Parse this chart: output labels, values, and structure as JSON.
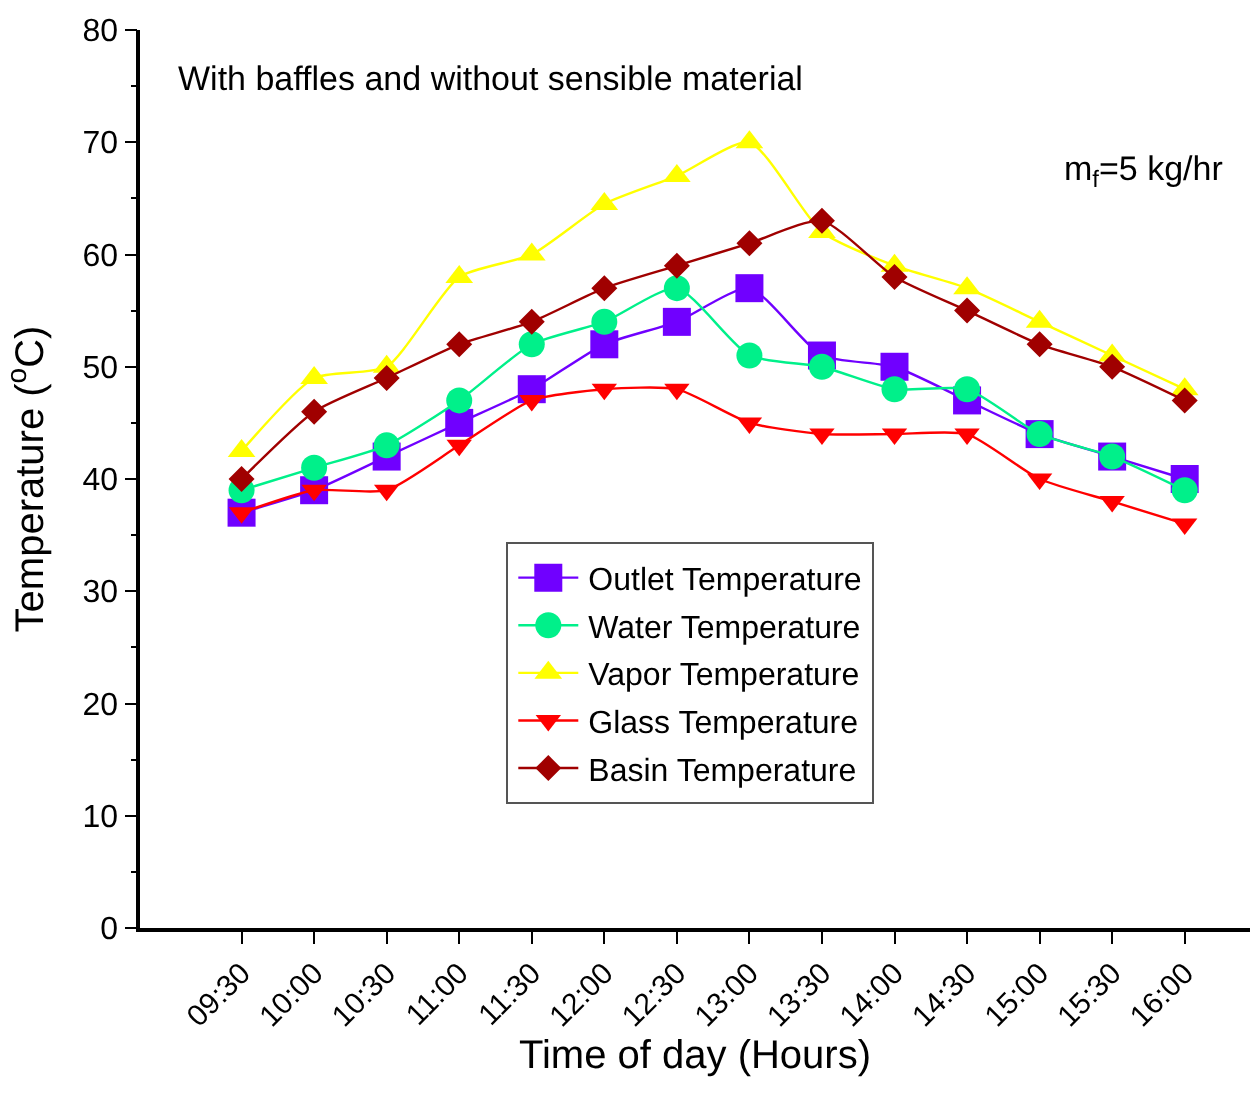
{
  "chart_data": {
    "type": "line",
    "xlabel": "Time of day (Hours)",
    "ylabel": "Temperature ($^{o}$C)",
    "annotations": [
      "With baffles and without sensible material",
      "m$_{f}$=5 kg/hr"
    ],
    "categories": [
      "09:30",
      "10:00",
      "10:30",
      "11:00",
      "11:30",
      "12:00",
      "12:30",
      "13:00",
      "13:30",
      "14:00",
      "14:30",
      "15:00",
      "15:30",
      "16:00"
    ],
    "series": [
      {
        "name": "Outlet Temperature",
        "color": "#7000ff",
        "marker": "square",
        "values": [
          37,
          39,
          42,
          45,
          48,
          52,
          54,
          57,
          51,
          50,
          47,
          44,
          42,
          40
        ]
      },
      {
        "name": "Water Temperature",
        "color": "#00f08a",
        "marker": "circle",
        "values": [
          39,
          41,
          43,
          47,
          52,
          54,
          57,
          51,
          50,
          48,
          48,
          44,
          42,
          39
        ]
      },
      {
        "name": "Vapor Temperature",
        "color": "#ffff00",
        "marker": "triangle",
        "values": [
          42.5,
          49,
          50,
          58,
          60,
          64.5,
          67,
          70,
          62,
          59,
          57,
          54,
          51,
          48
        ]
      },
      {
        "name": "Glass Temperature",
        "color": "#ff0000",
        "marker": "triangle-down",
        "values": [
          37,
          39,
          39,
          43,
          47,
          48,
          48,
          45,
          44,
          44,
          44,
          40,
          38,
          36
        ]
      },
      {
        "name": "Basin Temperature",
        "color": "#a00000",
        "marker": "diamond",
        "values": [
          40,
          46,
          49,
          52,
          54,
          57,
          59,
          61,
          63,
          58,
          55,
          52,
          50,
          47
        ]
      }
    ],
    "ylim": [
      0,
      80
    ],
    "yticks": [
      0,
      10,
      20,
      30,
      40,
      50,
      60,
      70,
      80
    ],
    "legend": "center"
  }
}
